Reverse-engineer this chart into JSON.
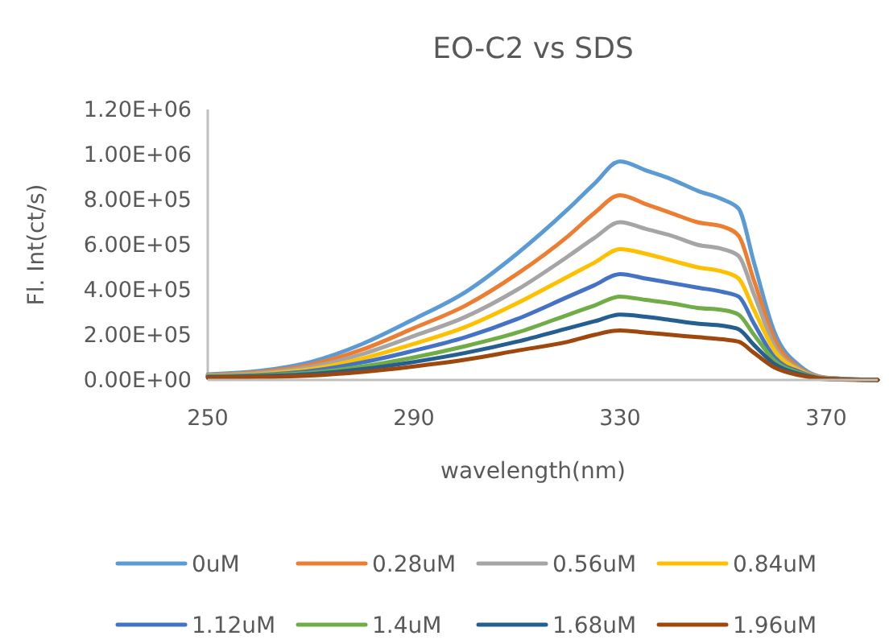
{
  "chart_data": {
    "type": "line",
    "title": "EO-C2 vs SDS",
    "xlabel": "wavelength(nm)",
    "ylabel": "Fl. Int(ct/s)",
    "x": [
      250,
      260,
      270,
      280,
      290,
      300,
      310,
      320,
      325,
      330,
      335,
      340,
      345,
      350,
      353,
      356,
      360,
      365,
      370,
      380
    ],
    "xlim": [
      250,
      380
    ],
    "xticks": [
      250,
      290,
      330,
      370
    ],
    "ylim": [
      0,
      1200000
    ],
    "yticks": [
      {
        "value": 0,
        "label": "0.00E+00"
      },
      {
        "value": 200000,
        "label": "2.00E+05"
      },
      {
        "value": 400000,
        "label": "4.00E+05"
      },
      {
        "value": 600000,
        "label": "6.00E+05"
      },
      {
        "value": 800000,
        "label": "8.00E+05"
      },
      {
        "value": 1000000,
        "label": "1.00E+06"
      },
      {
        "value": 1200000,
        "label": "1.20E+06"
      }
    ],
    "grid": false,
    "legend": "bottom",
    "marker": "none",
    "line_style": "solid",
    "series": [
      {
        "name": "0uM",
        "color": "#5b9bd5",
        "values": [
          25000,
          40000,
          80000,
          160000,
          270000,
          390000,
          560000,
          760000,
          870000,
          970000,
          930000,
          890000,
          840000,
          800000,
          760000,
          520000,
          210000,
          60000,
          10000,
          0
        ]
      },
      {
        "name": "0.28uM",
        "color": "#ed7d31",
        "values": [
          22000,
          35000,
          68000,
          135000,
          230000,
          330000,
          470000,
          640000,
          740000,
          820000,
          780000,
          740000,
          700000,
          680000,
          640000,
          440000,
          180000,
          50000,
          10000,
          0
        ]
      },
      {
        "name": "0.56uM",
        "color": "#a5a5a5",
        "values": [
          20000,
          30000,
          58000,
          115000,
          195000,
          280000,
          400000,
          550000,
          630000,
          700000,
          670000,
          640000,
          600000,
          580000,
          550000,
          380000,
          150000,
          45000,
          8000,
          0
        ]
      },
      {
        "name": "0.84uM",
        "color": "#ffc000",
        "values": [
          18000,
          26000,
          48000,
          95000,
          160000,
          235000,
          340000,
          460000,
          520000,
          580000,
          560000,
          530000,
          500000,
          480000,
          450000,
          310000,
          130000,
          40000,
          7000,
          0
        ]
      },
      {
        "name": "1.12uM",
        "color": "#4472c4",
        "values": [
          16000,
          22000,
          40000,
          78000,
          130000,
          190000,
          270000,
          370000,
          420000,
          470000,
          450000,
          430000,
          410000,
          390000,
          370000,
          250000,
          100000,
          35000,
          6000,
          0
        ]
      },
      {
        "name": "1.4uM",
        "color": "#70ad47",
        "values": [
          15000,
          20000,
          32000,
          60000,
          100000,
          150000,
          210000,
          290000,
          330000,
          370000,
          355000,
          340000,
          320000,
          310000,
          290000,
          200000,
          85000,
          30000,
          5000,
          0
        ]
      },
      {
        "name": "1.68uM",
        "color": "#255e91",
        "values": [
          13000,
          17000,
          26000,
          48000,
          80000,
          120000,
          170000,
          230000,
          260000,
          290000,
          280000,
          265000,
          250000,
          240000,
          225000,
          155000,
          70000,
          25000,
          5000,
          0
        ]
      },
      {
        "name": "1.96uM",
        "color": "#9e480e",
        "values": [
          10000,
          13000,
          20000,
          36000,
          60000,
          90000,
          130000,
          170000,
          200000,
          220000,
          210000,
          200000,
          190000,
          180000,
          170000,
          120000,
          55000,
          20000,
          4000,
          0
        ]
      }
    ]
  }
}
